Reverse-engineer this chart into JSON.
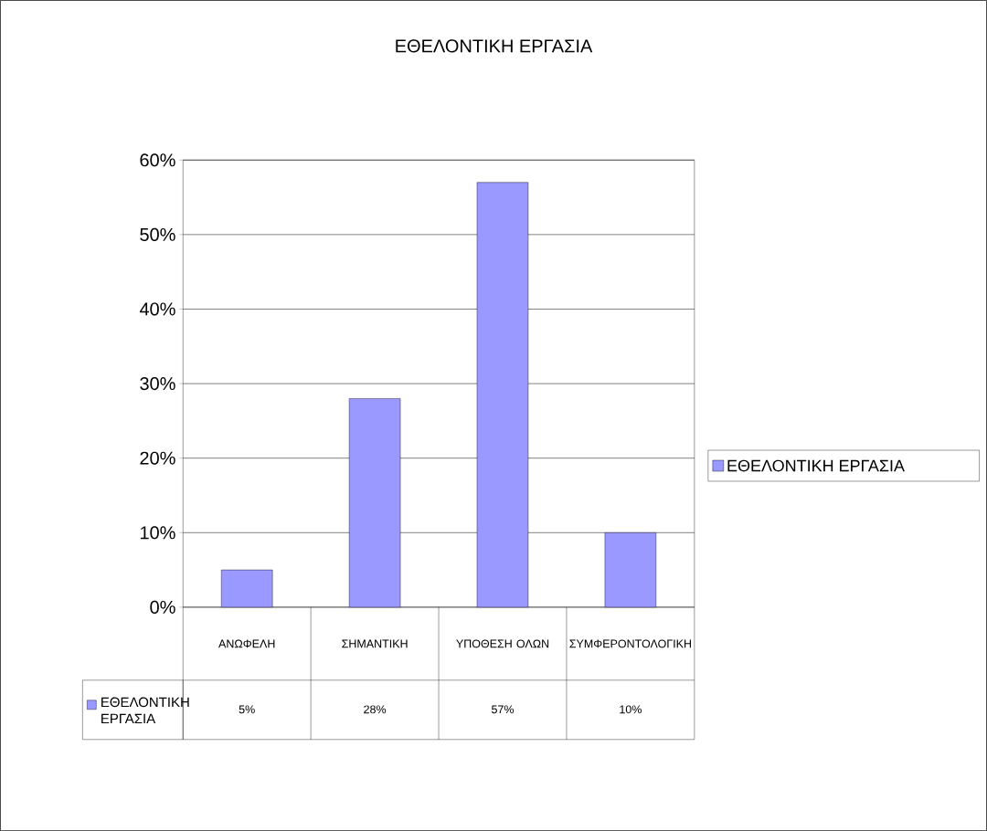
{
  "chart_data": {
    "type": "bar",
    "title": "ΕΘΕΛΟΝΤΙΚΗ ΕΡΓΑΣΙΑ",
    "categories": [
      "ΑΝΩΦΕΛΗ",
      "ΣΗΜΑΝΤΙΚΗ",
      "ΥΠΟΘΕΣΗ ΟΛΩΝ",
      "ΣΥΜΦΕΡΟΝΤΟΛΟΓΙΚΗ"
    ],
    "series": [
      {
        "name": "ΕΘΕΛΟΝΤΙΚΗ ΕΡΓΑΣΙΑ",
        "color": "#9999ff",
        "values": [
          5,
          28,
          57,
          10
        ],
        "value_labels": [
          "5%",
          "28%",
          "57%",
          "10%"
        ]
      }
    ],
    "ylim": [
      0,
      60
    ],
    "yticks": [
      {
        "value": 0,
        "label": "0%"
      },
      {
        "value": 10,
        "label": "10%"
      },
      {
        "value": 20,
        "label": "20%"
      },
      {
        "value": 30,
        "label": "30%"
      },
      {
        "value": 40,
        "label": "40%"
      },
      {
        "value": 50,
        "label": "50%"
      },
      {
        "value": 60,
        "label": "60%"
      }
    ],
    "grid": "y",
    "legend": "right"
  }
}
